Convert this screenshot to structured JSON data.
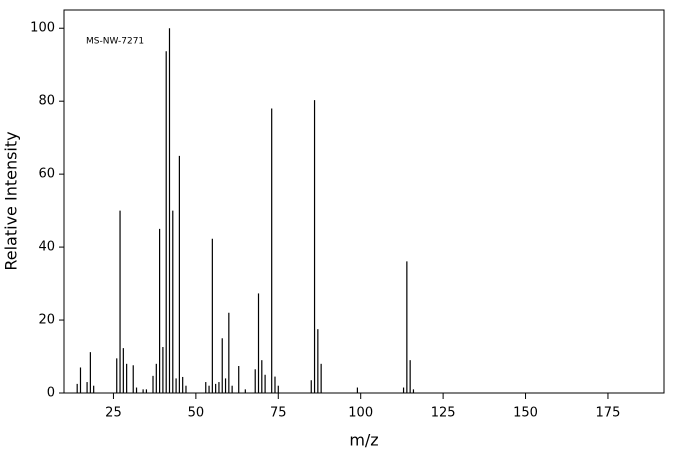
{
  "chart_data": {
    "type": "stem",
    "annotation": "MS-NW-7271",
    "xlabel": "m/z",
    "ylabel": "Relative Intensity",
    "x": [
      14,
      15,
      17,
      18,
      19,
      26,
      27,
      28,
      29,
      31,
      32,
      34,
      35,
      37,
      38,
      39,
      40,
      41,
      42,
      43,
      44,
      45,
      46,
      47,
      53,
      54,
      55,
      56,
      57,
      58,
      59,
      60,
      61,
      63,
      65,
      68,
      69,
      70,
      71,
      73,
      74,
      75,
      85,
      86,
      87,
      88,
      99,
      113,
      114,
      115,
      116
    ],
    "values": [
      2.5,
      7,
      3,
      11.2,
      2,
      9.5,
      50,
      12.3,
      8,
      7.6,
      1.5,
      1,
      1,
      4.7,
      8,
      45,
      12.6,
      93.7,
      100,
      50,
      4,
      65,
      4.4,
      2,
      3,
      2,
      42.3,
      2.5,
      3,
      15,
      4,
      22,
      2,
      7.4,
      1,
      6.5,
      27.3,
      9,
      5,
      78,
      4.5,
      2,
      3.5,
      80.3,
      17.5,
      8,
      1.5,
      1.5,
      36.1,
      9,
      1
    ],
    "color": "#000000",
    "xlim": [
      10,
      192
    ],
    "ylim": [
      0,
      105
    ],
    "xticks": [
      25,
      50,
      75,
      100,
      125,
      150,
      175
    ],
    "yticks": [
      0,
      20,
      40,
      60,
      80,
      100
    ]
  }
}
